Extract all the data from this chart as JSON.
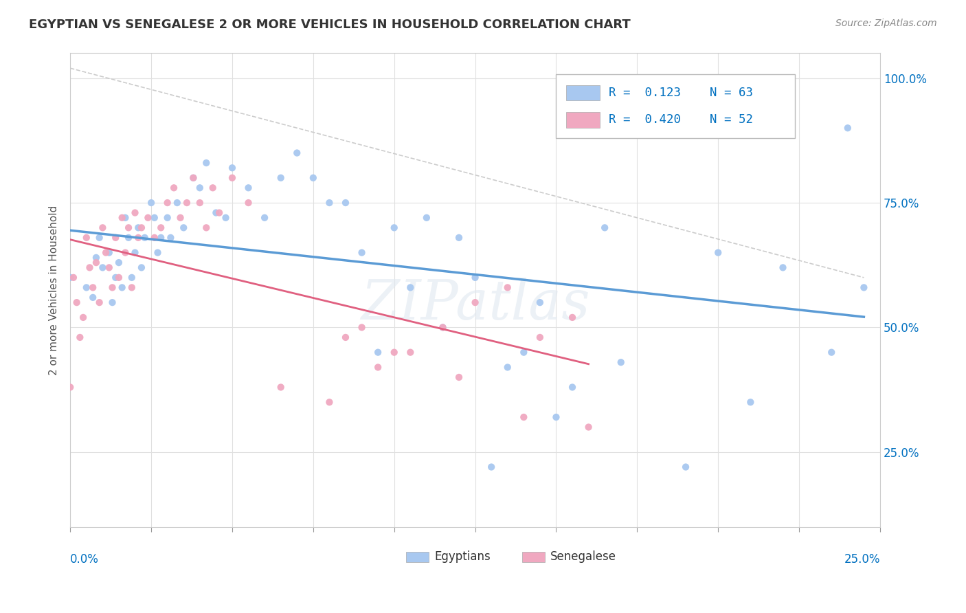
{
  "title": "EGYPTIAN VS SENEGALESE 2 OR MORE VEHICLES IN HOUSEHOLD CORRELATION CHART",
  "source": "Source: ZipAtlas.com",
  "ylabel": "2 or more Vehicles in Household",
  "ylabel_ticks": [
    "25.0%",
    "50.0%",
    "75.0%",
    "100.0%"
  ],
  "ylabel_tick_vals": [
    0.25,
    0.5,
    0.75,
    1.0
  ],
  "xmin": 0.0,
  "xmax": 0.25,
  "ymin": 0.1,
  "ymax": 1.05,
  "r_egyptian": 0.123,
  "n_egyptian": 63,
  "r_senegalese": 0.42,
  "n_senegalese": 52,
  "color_egyptian": "#a8c8f0",
  "color_senegalese": "#f0a8c0",
  "trendline_egyptian_color": "#5b9bd5",
  "trendline_senegalese_color": "#e06080",
  "egyptian_x": [
    0.0,
    0.005,
    0.007,
    0.008,
    0.009,
    0.01,
    0.012,
    0.013,
    0.014,
    0.015,
    0.016,
    0.017,
    0.018,
    0.019,
    0.02,
    0.021,
    0.022,
    0.023,
    0.025,
    0.026,
    0.027,
    0.028,
    0.03,
    0.031,
    0.033,
    0.035,
    0.038,
    0.04,
    0.042,
    0.045,
    0.048,
    0.05,
    0.055,
    0.06,
    0.065,
    0.07,
    0.08,
    0.085,
    0.09,
    0.1,
    0.11,
    0.12,
    0.13,
    0.14,
    0.15,
    0.17,
    0.19,
    0.2,
    0.21,
    0.22,
    0.235,
    0.24,
    0.245,
    0.175,
    0.165,
    0.155,
    0.145,
    0.135,
    0.125,
    0.115,
    0.105,
    0.095,
    0.075
  ],
  "egyptian_y": [
    0.6,
    0.58,
    0.56,
    0.64,
    0.68,
    0.62,
    0.65,
    0.55,
    0.6,
    0.63,
    0.58,
    0.72,
    0.68,
    0.6,
    0.65,
    0.7,
    0.62,
    0.68,
    0.75,
    0.72,
    0.65,
    0.68,
    0.72,
    0.68,
    0.75,
    0.7,
    0.8,
    0.78,
    0.83,
    0.73,
    0.72,
    0.82,
    0.78,
    0.72,
    0.8,
    0.85,
    0.75,
    0.75,
    0.65,
    0.7,
    0.72,
    0.68,
    0.22,
    0.45,
    0.32,
    0.43,
    0.22,
    0.65,
    0.35,
    0.62,
    0.45,
    0.9,
    0.58,
    0.98,
    0.7,
    0.38,
    0.55,
    0.42,
    0.6,
    0.5,
    0.58,
    0.45,
    0.8
  ],
  "senegalese_x": [
    0.0,
    0.001,
    0.002,
    0.003,
    0.004,
    0.005,
    0.006,
    0.007,
    0.008,
    0.009,
    0.01,
    0.011,
    0.012,
    0.013,
    0.014,
    0.015,
    0.016,
    0.017,
    0.018,
    0.019,
    0.02,
    0.021,
    0.022,
    0.024,
    0.026,
    0.028,
    0.03,
    0.032,
    0.034,
    0.036,
    0.038,
    0.04,
    0.042,
    0.044,
    0.046,
    0.05,
    0.055,
    0.065,
    0.08,
    0.09,
    0.1,
    0.12,
    0.14,
    0.16,
    0.155,
    0.145,
    0.135,
    0.125,
    0.115,
    0.105,
    0.095,
    0.085
  ],
  "senegalese_y": [
    0.38,
    0.6,
    0.55,
    0.48,
    0.52,
    0.68,
    0.62,
    0.58,
    0.63,
    0.55,
    0.7,
    0.65,
    0.62,
    0.58,
    0.68,
    0.6,
    0.72,
    0.65,
    0.7,
    0.58,
    0.73,
    0.68,
    0.7,
    0.72,
    0.68,
    0.7,
    0.75,
    0.78,
    0.72,
    0.75,
    0.8,
    0.75,
    0.7,
    0.78,
    0.73,
    0.8,
    0.75,
    0.38,
    0.35,
    0.5,
    0.45,
    0.4,
    0.32,
    0.3,
    0.52,
    0.48,
    0.58,
    0.55,
    0.5,
    0.45,
    0.42,
    0.48
  ]
}
